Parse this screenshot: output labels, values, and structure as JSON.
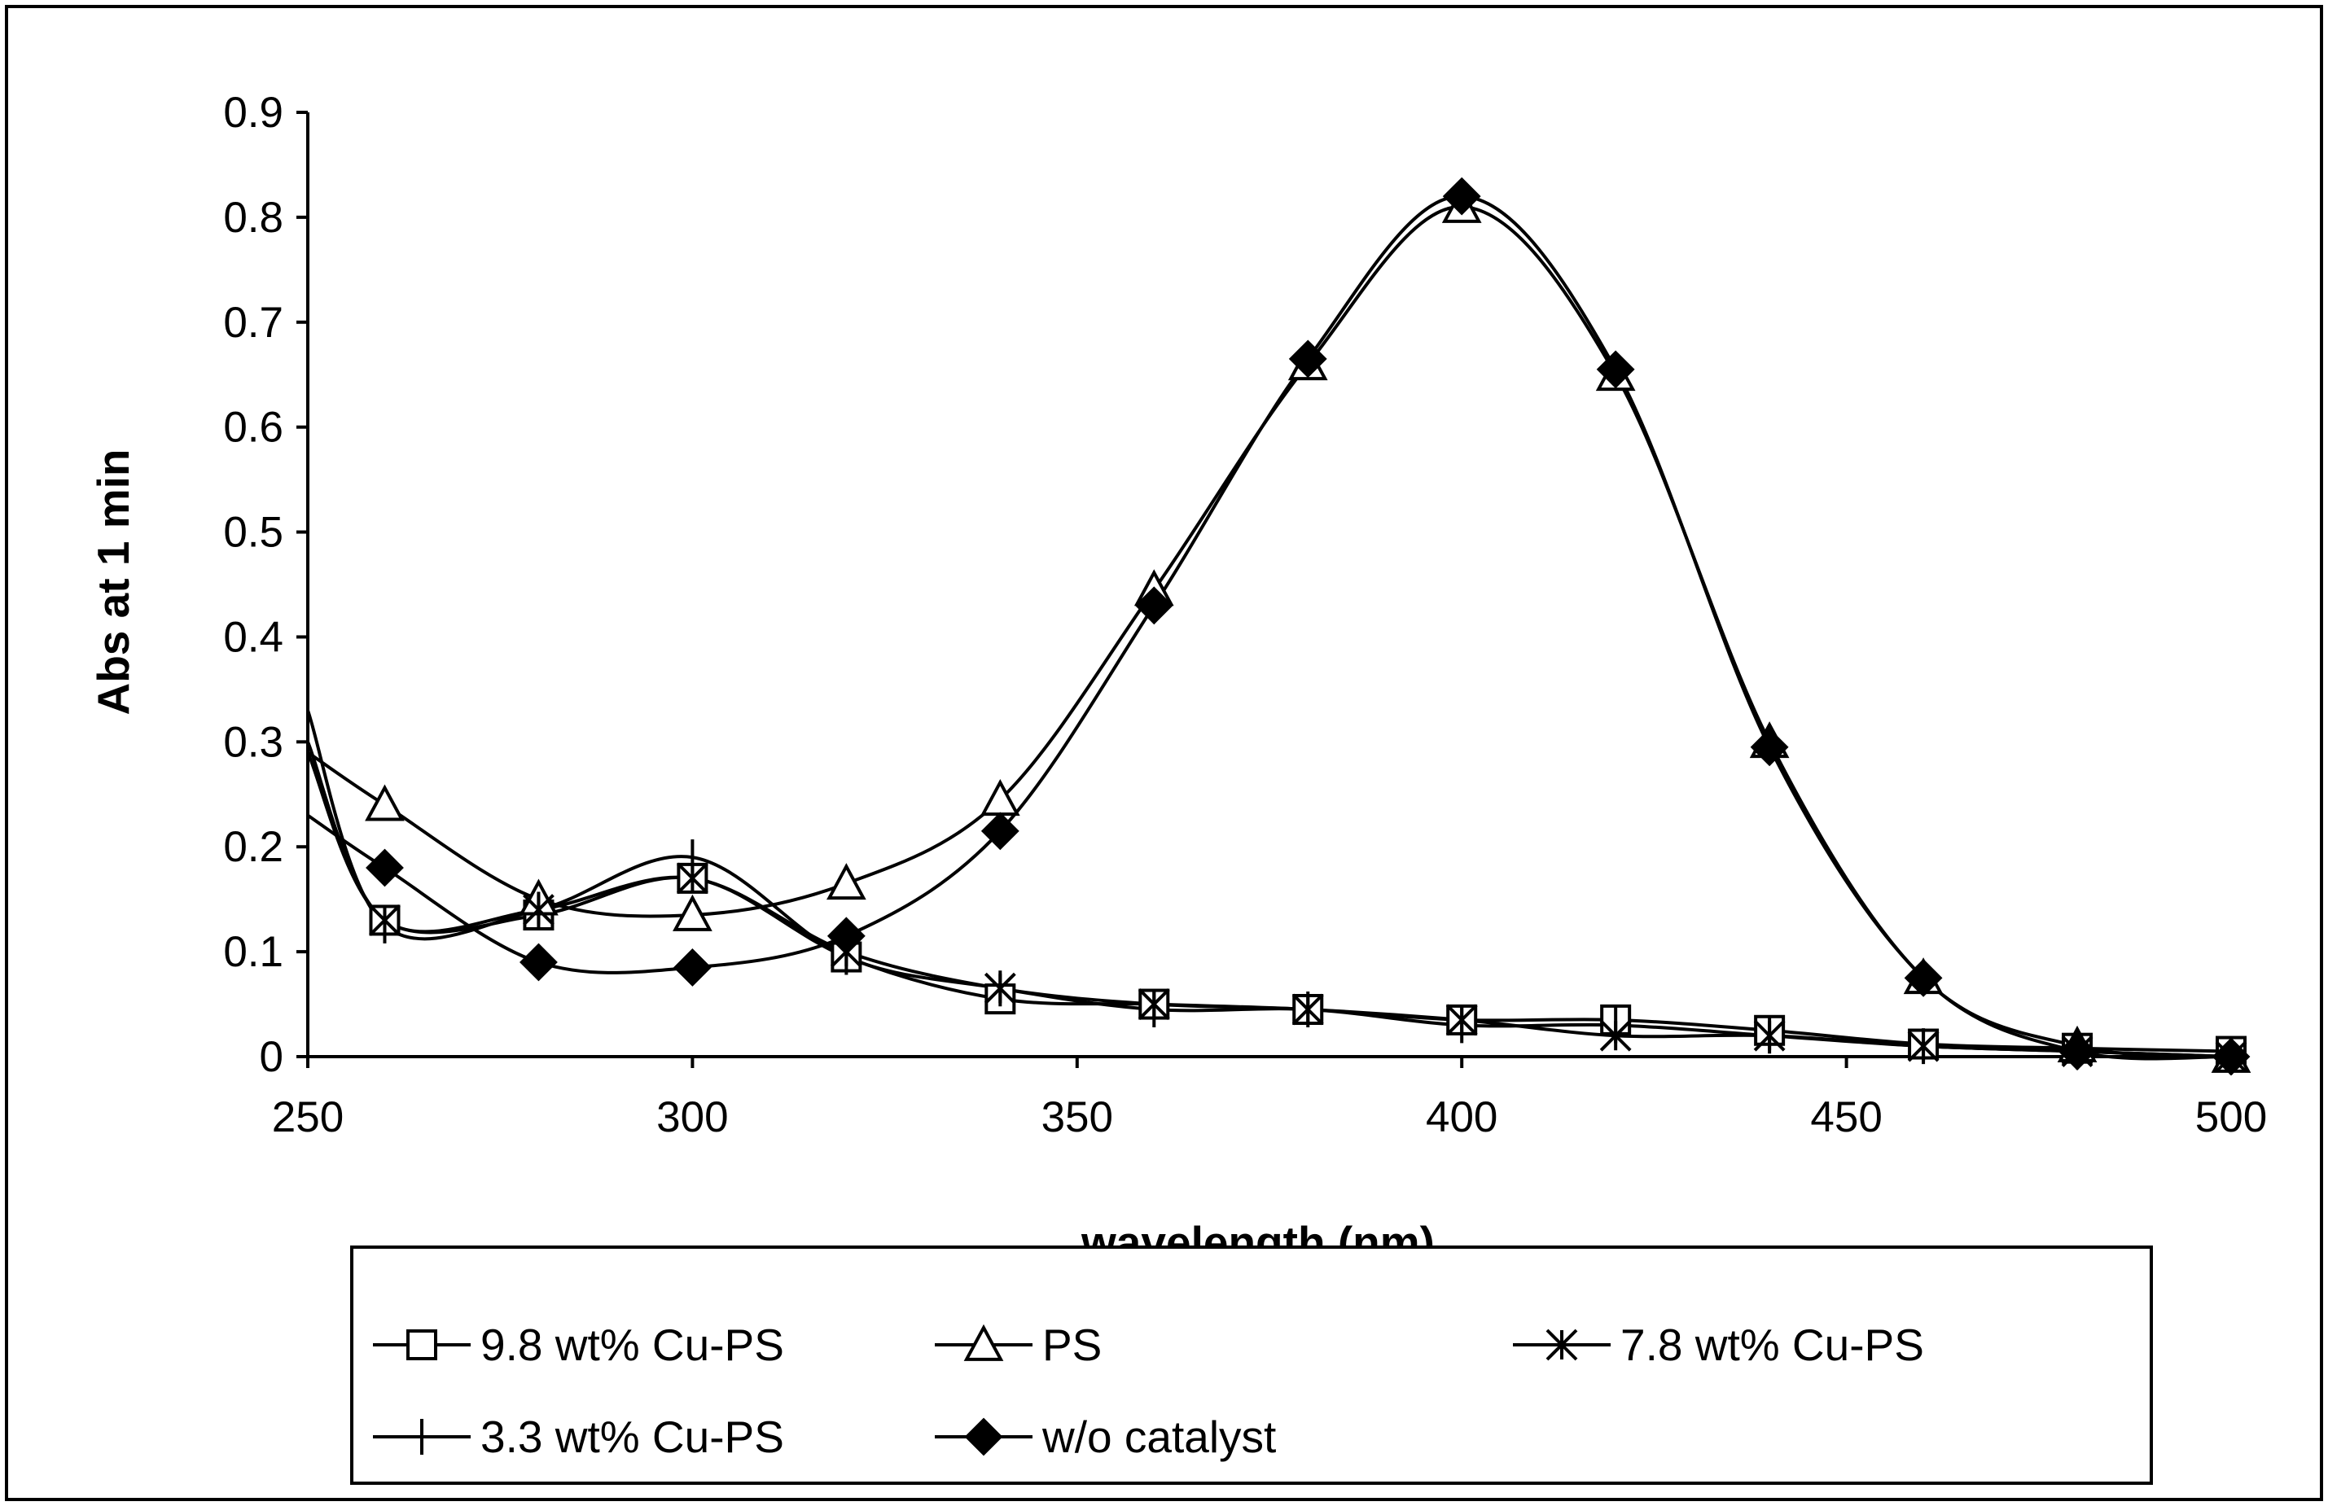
{
  "chart_data": {
    "type": "line",
    "title": "",
    "xlabel": "wavelength (nm)",
    "ylabel": "Abs at 1 min",
    "xlim": [
      250,
      500
    ],
    "ylim": [
      0,
      0.9
    ],
    "xticks": [
      250,
      300,
      350,
      400,
      450,
      500
    ],
    "yticks": [
      0,
      0.1,
      0.2,
      0.3,
      0.4,
      0.5,
      0.6,
      0.7,
      0.8,
      0.9
    ],
    "grid": false,
    "legend_position": "bottom",
    "series": [
      {
        "name": "9.8 wt% Cu-PS",
        "marker": "square",
        "x": [
          250,
          260,
          280,
          300,
          320,
          340,
          360,
          380,
          400,
          420,
          440,
          460,
          480,
          500
        ],
        "y": [
          0.29,
          0.13,
          0.135,
          0.17,
          0.095,
          0.055,
          0.05,
          0.045,
          0.035,
          0.035,
          0.025,
          0.012,
          0.008,
          0.005
        ]
      },
      {
        "name": "PS",
        "marker": "triangle",
        "x": [
          250,
          260,
          280,
          300,
          320,
          340,
          360,
          380,
          400,
          420,
          440,
          460,
          480,
          500
        ],
        "y": [
          0.29,
          0.24,
          0.15,
          0.135,
          0.165,
          0.245,
          0.445,
          0.66,
          0.81,
          0.65,
          0.3,
          0.075,
          0.01,
          0.0
        ]
      },
      {
        "name": "7.8 wt% Cu-PS",
        "marker": "asterisk",
        "x": [
          250,
          260,
          280,
          300,
          320,
          340,
          360,
          380,
          400,
          420,
          440,
          460,
          480,
          500
        ],
        "y": [
          0.3,
          0.13,
          0.14,
          0.17,
          0.1,
          0.065,
          0.05,
          0.045,
          0.035,
          0.02,
          0.02,
          0.01,
          0.005,
          0.0
        ]
      },
      {
        "name": "3.3 wt% Cu-PS",
        "marker": "plus",
        "x": [
          250,
          260,
          280,
          300,
          320,
          340,
          360,
          380,
          400,
          420,
          440,
          460,
          480,
          500
        ],
        "y": [
          0.33,
          0.125,
          0.14,
          0.19,
          0.095,
          0.065,
          0.045,
          0.045,
          0.03,
          0.03,
          0.02,
          0.01,
          0.005,
          0.0
        ]
      },
      {
        "name": "w/o catalyst",
        "marker": "diamond",
        "x": [
          250,
          260,
          280,
          300,
          320,
          340,
          360,
          380,
          400,
          420,
          440,
          460,
          480,
          500
        ],
        "y": [
          0.23,
          0.18,
          0.09,
          0.085,
          0.115,
          0.215,
          0.43,
          0.665,
          0.82,
          0.655,
          0.295,
          0.075,
          0.005,
          0.0
        ]
      }
    ]
  }
}
